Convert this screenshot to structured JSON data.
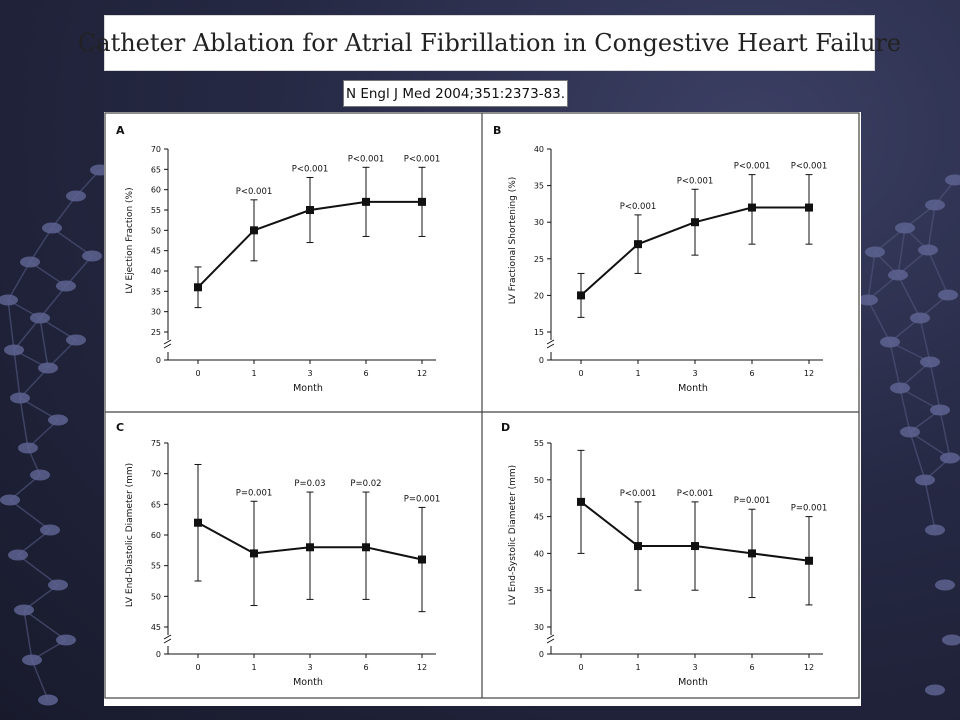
{
  "slide": {
    "title": "Catheter Ablation for Atrial Fibrillation in Congestive Heart Failure",
    "citation": "N Engl J Med 2004;351:2373-83."
  },
  "colors": {
    "background": "#23263f",
    "panel": "#ffffff",
    "ink": "#111111"
  },
  "chart_data": [
    {
      "panel": "A",
      "type": "line",
      "categories": [
        "0",
        "1",
        "3",
        "6",
        "12"
      ],
      "series": [
        {
          "values": [
            36,
            50,
            55,
            57,
            57
          ],
          "lower": [
            31,
            42.5,
            47,
            48.5,
            48.5
          ],
          "upper": [
            41,
            57.5,
            63,
            65.5,
            65.5
          ]
        }
      ],
      "p_values": [
        "",
        "P<0.001",
        "P<0.001",
        "P<0.001",
        "P<0.001"
      ],
      "xlabel": "Month",
      "ylabel": "LV Ejection Fraction (%)",
      "yticks": [
        25,
        30,
        35,
        40,
        45,
        50,
        55,
        60,
        65,
        70
      ],
      "ylim": [
        25,
        70
      ],
      "axis_break": true
    },
    {
      "panel": "B",
      "type": "line",
      "categories": [
        "0",
        "1",
        "3",
        "6",
        "12"
      ],
      "series": [
        {
          "values": [
            20,
            27,
            30,
            32,
            32
          ],
          "lower": [
            17,
            23,
            25.5,
            27,
            27
          ],
          "upper": [
            23,
            31,
            34.5,
            36.5,
            36.5
          ]
        }
      ],
      "p_values": [
        "",
        "P<0.001",
        "P<0.001",
        "P<0.001",
        "P<0.001"
      ],
      "xlabel": "Month",
      "ylabel": "LV Fractional Shortening (%)",
      "yticks": [
        15,
        20,
        25,
        30,
        35,
        40
      ],
      "ylim": [
        15,
        40
      ],
      "axis_break": true
    },
    {
      "panel": "C",
      "type": "line",
      "categories": [
        "0",
        "1",
        "3",
        "6",
        "12"
      ],
      "series": [
        {
          "values": [
            62,
            57,
            58,
            58,
            56
          ],
          "lower": [
            52.5,
            48.5,
            49.5,
            49.5,
            47.5
          ],
          "upper": [
            71.5,
            65.5,
            67,
            67,
            64.5
          ]
        }
      ],
      "p_values": [
        "",
        "P=0.001",
        "P=0.03",
        "P=0.02",
        "P=0.001"
      ],
      "xlabel": "Month",
      "ylabel": "LV End-Diastolic Diameter (mm)",
      "yticks": [
        45,
        50,
        55,
        60,
        65,
        70,
        75
      ],
      "ylim": [
        45,
        75
      ],
      "axis_break": true
    },
    {
      "panel": "D",
      "type": "line",
      "categories": [
        "0",
        "1",
        "3",
        "6",
        "12"
      ],
      "series": [
        {
          "values": [
            47,
            41,
            41,
            40,
            39
          ],
          "lower": [
            40,
            35,
            35,
            34,
            33
          ],
          "upper": [
            54,
            47,
            47,
            46,
            45
          ]
        }
      ],
      "p_values": [
        "",
        "P<0.001",
        "P<0.001",
        "P=0.001",
        "P=0.001"
      ],
      "xlabel": "Month",
      "ylabel": "LV End-Systolic Diameter (mm)",
      "yticks": [
        30,
        35,
        40,
        45,
        50,
        55
      ],
      "ylim": [
        30,
        55
      ],
      "axis_break": true
    }
  ]
}
